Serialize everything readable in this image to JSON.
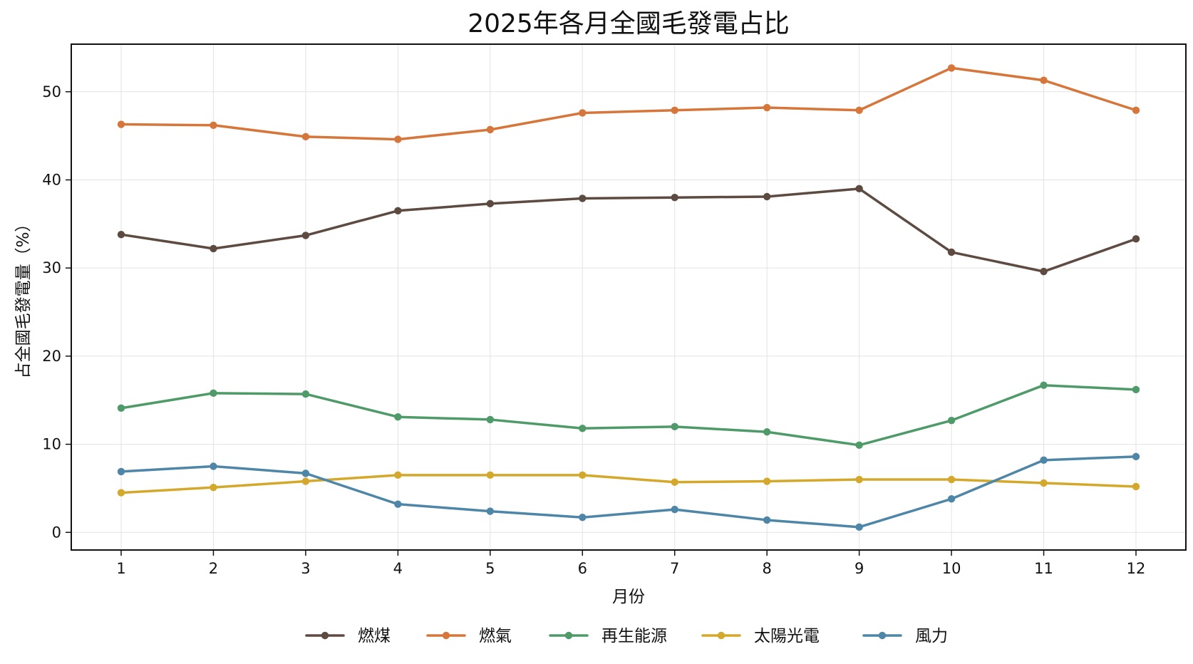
{
  "chart_data": {
    "type": "line",
    "title": "2025年各月全國毛發電占比",
    "xlabel": "月份",
    "ylabel": "占全國毛發電量（%）",
    "categories": [
      "1",
      "2",
      "3",
      "4",
      "5",
      "6",
      "7",
      "8",
      "9",
      "10",
      "11",
      "12"
    ],
    "ylim": [
      -2,
      55.4
    ],
    "yticks": [
      0,
      10,
      20,
      30,
      40,
      50
    ],
    "grid": true,
    "legend_position": "bottom-center",
    "series": [
      {
        "name": "燃煤",
        "color": "#5D4A40",
        "values": [
          33.8,
          32.2,
          33.7,
          36.5,
          37.3,
          37.9,
          38.0,
          38.1,
          39.0,
          31.8,
          29.6,
          33.3
        ]
      },
      {
        "name": "燃氣",
        "color": "#D6763A",
        "values": [
          46.3,
          46.2,
          44.9,
          44.6,
          45.7,
          47.6,
          47.9,
          48.2,
          47.9,
          52.7,
          51.3,
          47.9
        ]
      },
      {
        "name": "再生能源",
        "color": "#4E9A68",
        "values": [
          14.1,
          15.8,
          15.7,
          13.1,
          12.8,
          11.8,
          12.0,
          11.4,
          9.9,
          12.7,
          16.7,
          16.2
        ]
      },
      {
        "name": "太陽光電",
        "color": "#D4A82A",
        "values": [
          4.5,
          5.1,
          5.8,
          6.5,
          6.5,
          6.5,
          5.7,
          5.8,
          6.0,
          6.0,
          5.6,
          5.2
        ]
      },
      {
        "name": "風力",
        "color": "#4E86A8",
        "values": [
          6.9,
          7.5,
          6.7,
          3.2,
          2.4,
          1.7,
          2.6,
          1.4,
          0.6,
          3.8,
          8.2,
          8.6
        ]
      }
    ]
  }
}
